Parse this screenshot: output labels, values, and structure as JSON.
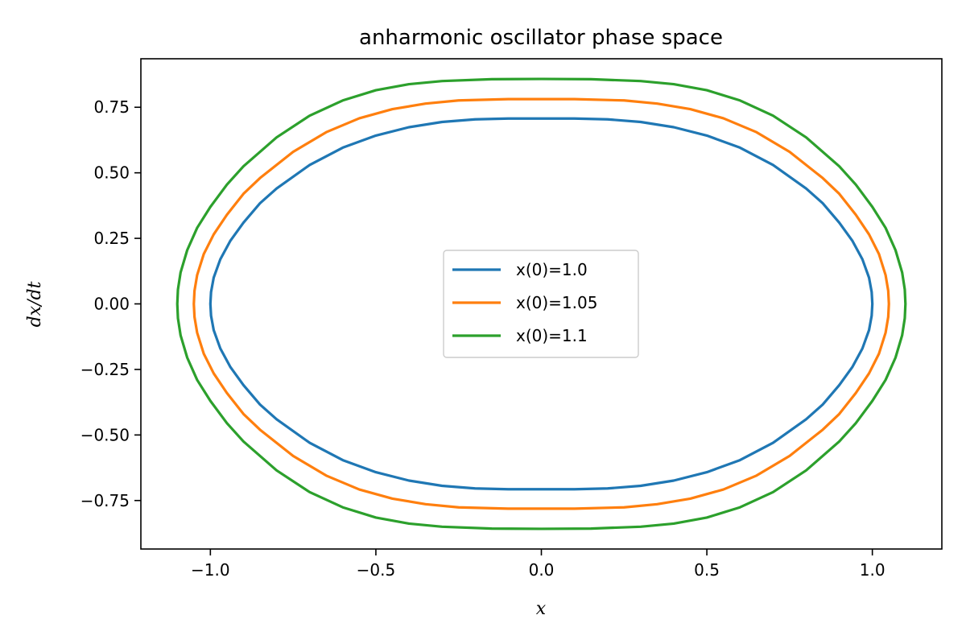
{
  "chart_data": {
    "type": "line",
    "title": "anharmonic oscillator phase space",
    "xlabel": "x",
    "ylabel": "dx/dt",
    "xlim": [
      -1.21,
      1.21
    ],
    "ylim": [
      -0.935,
      0.935
    ],
    "xticks": [
      -1.0,
      -0.5,
      0.0,
      0.5,
      1.0
    ],
    "xtick_labels": [
      "−1.0",
      "−0.5",
      "0.0",
      "0.5",
      "1.0"
    ],
    "yticks": [
      -0.75,
      -0.5,
      -0.25,
      0.0,
      0.25,
      0.5,
      0.75
    ],
    "ytick_labels": [
      "−0.75",
      "−0.50",
      "−0.25",
      "0.00",
      "0.25",
      "0.50",
      "0.75"
    ],
    "grid": false,
    "legend_position": "center",
    "series": [
      {
        "name": "x(0)=1.0",
        "color": "#1f77b4",
        "x": [
          1.0,
          0.998,
          0.99,
          0.97,
          0.94,
          0.9,
          0.85,
          0.8,
          0.7,
          0.6,
          0.5,
          0.4,
          0.3,
          0.2,
          0.1,
          0.0,
          -0.1,
          -0.2,
          -0.3,
          -0.4,
          -0.5,
          -0.6,
          -0.7,
          -0.8,
          -0.85,
          -0.9,
          -0.94,
          -0.97,
          -0.99,
          -0.998,
          -1.0,
          -0.998,
          -0.99,
          -0.97,
          -0.94,
          -0.9,
          -0.85,
          -0.8,
          -0.7,
          -0.6,
          -0.5,
          -0.4,
          -0.3,
          -0.2,
          -0.1,
          0.0,
          0.1,
          0.2,
          0.3,
          0.4,
          0.5,
          0.6,
          0.7,
          0.8,
          0.85,
          0.9,
          0.94,
          0.97,
          0.99,
          0.998,
          1.0
        ],
        "y": [
          0.0,
          0.045,
          0.1,
          0.17,
          0.24,
          0.31,
          0.384,
          0.44,
          0.53,
          0.596,
          0.642,
          0.674,
          0.694,
          0.704,
          0.707,
          0.707,
          0.707,
          0.704,
          0.694,
          0.674,
          0.642,
          0.596,
          0.53,
          0.44,
          0.384,
          0.31,
          0.24,
          0.17,
          0.1,
          0.045,
          0.0,
          -0.045,
          -0.1,
          -0.17,
          -0.24,
          -0.31,
          -0.384,
          -0.44,
          -0.53,
          -0.596,
          -0.642,
          -0.674,
          -0.694,
          -0.704,
          -0.707,
          -0.707,
          -0.707,
          -0.704,
          -0.694,
          -0.674,
          -0.642,
          -0.596,
          -0.53,
          -0.44,
          -0.384,
          -0.31,
          -0.24,
          -0.17,
          -0.1,
          -0.045,
          0.0
        ]
      },
      {
        "name": "x(0)=1.05",
        "color": "#ff7f0e",
        "x": [
          1.05,
          1.048,
          1.04,
          1.02,
          0.99,
          0.95,
          0.9,
          0.85,
          0.75,
          0.65,
          0.55,
          0.45,
          0.35,
          0.25,
          0.1,
          0.0,
          -0.1,
          -0.25,
          -0.35,
          -0.45,
          -0.55,
          -0.65,
          -0.75,
          -0.85,
          -0.9,
          -0.95,
          -0.99,
          -1.02,
          -1.04,
          -1.048,
          -1.05,
          -1.048,
          -1.04,
          -1.02,
          -0.99,
          -0.95,
          -0.9,
          -0.85,
          -0.75,
          -0.65,
          -0.55,
          -0.45,
          -0.35,
          -0.25,
          -0.1,
          0.0,
          0.1,
          0.25,
          0.35,
          0.45,
          0.55,
          0.65,
          0.75,
          0.85,
          0.9,
          0.95,
          0.99,
          1.02,
          1.04,
          1.048,
          1.05
        ],
        "y": [
          0.0,
          0.05,
          0.11,
          0.19,
          0.265,
          0.34,
          0.42,
          0.48,
          0.58,
          0.655,
          0.708,
          0.743,
          0.764,
          0.776,
          0.781,
          0.781,
          0.781,
          0.776,
          0.764,
          0.743,
          0.708,
          0.655,
          0.58,
          0.48,
          0.42,
          0.34,
          0.265,
          0.19,
          0.11,
          0.05,
          0.0,
          -0.05,
          -0.11,
          -0.19,
          -0.265,
          -0.34,
          -0.42,
          -0.48,
          -0.58,
          -0.655,
          -0.708,
          -0.743,
          -0.764,
          -0.776,
          -0.781,
          -0.781,
          -0.781,
          -0.776,
          -0.764,
          -0.743,
          -0.708,
          -0.655,
          -0.58,
          -0.48,
          -0.42,
          -0.34,
          -0.265,
          -0.19,
          -0.11,
          -0.05,
          0.0
        ]
      },
      {
        "name": "x(0)=1.1",
        "color": "#2ca02c",
        "x": [
          1.1,
          1.098,
          1.09,
          1.07,
          1.04,
          1.0,
          0.95,
          0.9,
          0.8,
          0.7,
          0.6,
          0.5,
          0.4,
          0.3,
          0.15,
          0.0,
          -0.15,
          -0.3,
          -0.4,
          -0.5,
          -0.6,
          -0.7,
          -0.8,
          -0.9,
          -0.95,
          -1.0,
          -1.04,
          -1.07,
          -1.09,
          -1.098,
          -1.1,
          -1.098,
          -1.09,
          -1.07,
          -1.04,
          -1.0,
          -0.95,
          -0.9,
          -0.8,
          -0.7,
          -0.6,
          -0.5,
          -0.4,
          -0.3,
          -0.15,
          0.0,
          0.15,
          0.3,
          0.4,
          0.5,
          0.6,
          0.7,
          0.8,
          0.9,
          0.95,
          1.0,
          1.04,
          1.07,
          1.09,
          1.098,
          1.1
        ],
        "y": [
          0.0,
          0.055,
          0.12,
          0.205,
          0.29,
          0.37,
          0.455,
          0.525,
          0.635,
          0.718,
          0.776,
          0.815,
          0.838,
          0.85,
          0.857,
          0.858,
          0.857,
          0.85,
          0.838,
          0.815,
          0.776,
          0.718,
          0.635,
          0.525,
          0.455,
          0.37,
          0.29,
          0.205,
          0.12,
          0.055,
          0.0,
          -0.055,
          -0.12,
          -0.205,
          -0.29,
          -0.37,
          -0.455,
          -0.525,
          -0.635,
          -0.718,
          -0.776,
          -0.815,
          -0.838,
          -0.85,
          -0.857,
          -0.858,
          -0.857,
          -0.85,
          -0.838,
          -0.815,
          -0.776,
          -0.718,
          -0.635,
          -0.525,
          -0.455,
          -0.37,
          -0.29,
          -0.205,
          -0.12,
          -0.055,
          0.0
        ]
      }
    ]
  }
}
